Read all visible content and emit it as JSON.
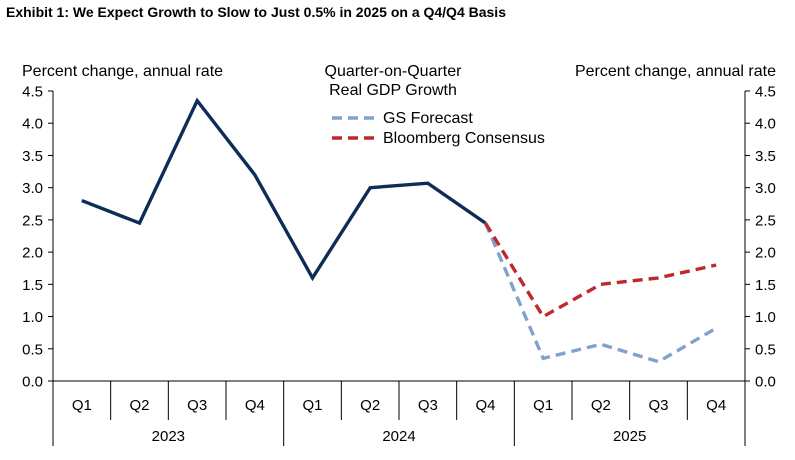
{
  "exhibit_title": "Exhibit 1: We Expect Growth to Slow to Just 0.5% in 2025 on a Q4/Q4 Basis",
  "chart_data": {
    "type": "line",
    "title": "Quarter-on-Quarter",
    "subtitle": "Real GDP Growth",
    "ylabel_left": "Percent change, annual rate",
    "ylabel_right": "Percent change, annual rate",
    "ylim": [
      0,
      4.5
    ],
    "yticks": [
      "0.0",
      "0.5",
      "1.0",
      "1.5",
      "2.0",
      "2.5",
      "3.0",
      "3.5",
      "4.0",
      "4.5"
    ],
    "categories": [
      "Q1",
      "Q2",
      "Q3",
      "Q4",
      "Q1",
      "Q2",
      "Q3",
      "Q4",
      "Q1",
      "Q2",
      "Q3",
      "Q4"
    ],
    "years": [
      {
        "label": "2023",
        "start": 0,
        "end": 3
      },
      {
        "label": "2024",
        "start": 4,
        "end": 7
      },
      {
        "label": "2025",
        "start": 8,
        "end": 11
      }
    ],
    "series": [
      {
        "values": [
          2.8,
          2.45,
          4.35,
          3.2,
          1.6,
          3.0,
          3.07,
          2.45,
          null,
          null,
          null,
          null
        ],
        "color": "#0c2d57",
        "style": "solid"
      },
      {
        "name": "GS Forecast",
        "values": [
          null,
          null,
          null,
          null,
          null,
          null,
          null,
          2.45,
          0.35,
          0.57,
          0.3,
          0.82
        ],
        "color": "#7fa3cc",
        "style": "dashed"
      },
      {
        "name": "Bloomberg Consensus",
        "values": [
          null,
          null,
          null,
          null,
          null,
          null,
          null,
          2.45,
          1.0,
          1.5,
          1.6,
          1.8
        ],
        "color": "#c0282e",
        "style": "dashed"
      }
    ],
    "legend_position": "top-center",
    "grid": false
  }
}
